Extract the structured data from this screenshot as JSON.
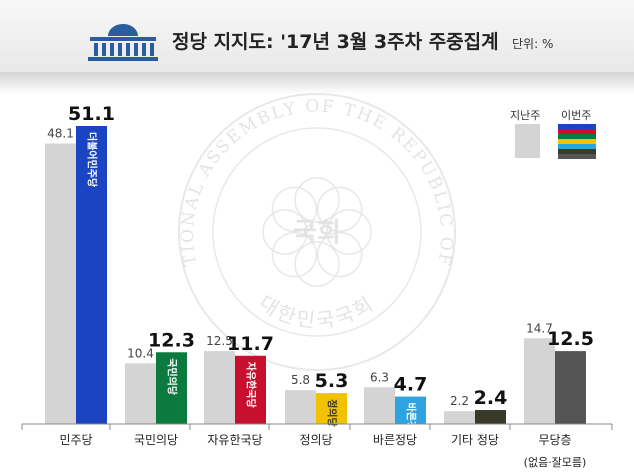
{
  "header": {
    "title": "정당 지지도: '17년 3월 3주차 주중집계",
    "unit_label": "단위: %",
    "logo_icon": "national-assembly-icon"
  },
  "legend": {
    "previous_label": "지난주",
    "current_label": "이번주",
    "previous_color": "#d4d4d4",
    "current_colors": [
      "#1a44c2",
      "#c8102e",
      "#0b7a3e",
      "#f2c200",
      "#2fa3e0",
      "#3a3a2a",
      "#555555"
    ]
  },
  "watermark": {
    "outer_text": "THE NATIONAL ASSEMBLY OF THE REPUBLIC OF KOREA",
    "inner_text": "대한민국국회",
    "seal_text": "국회"
  },
  "chart_data": {
    "type": "bar",
    "categories": [
      "민주당",
      "국민의당",
      "자유한국당",
      "정의당",
      "바른정당",
      "기타 정당",
      "무당층"
    ],
    "category_sublabels": [
      "",
      "",
      "",
      "",
      "",
      "",
      "(없음·잘모름)"
    ],
    "series": [
      {
        "name": "지난주",
        "values": [
          48.1,
          10.4,
          12.5,
          5.8,
          6.3,
          2.2,
          14.7
        ]
      },
      {
        "name": "이번주",
        "values": [
          51.1,
          12.3,
          11.7,
          5.3,
          4.7,
          2.4,
          12.5
        ]
      }
    ],
    "current_bar_colors": [
      "#1a44c2",
      "#0b7a3e",
      "#c8102e",
      "#f2c200",
      "#2fa3e0",
      "#3a3a2a",
      "#555555"
    ],
    "bar_logos": [
      "더불어민주당",
      "국민의당",
      "자유한국당",
      "정의당",
      "바른정당",
      "",
      ""
    ],
    "ylim": [
      0,
      55
    ],
    "grid": false,
    "legend_position": "top-right"
  }
}
